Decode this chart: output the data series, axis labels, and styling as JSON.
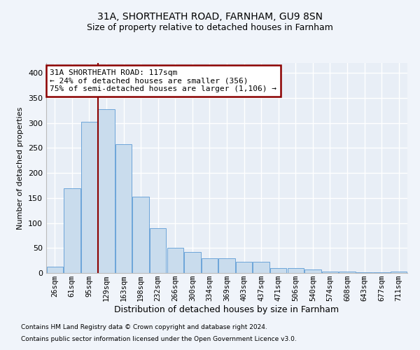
{
  "title1": "31A, SHORTHEATH ROAD, FARNHAM, GU9 8SN",
  "title2": "Size of property relative to detached houses in Farnham",
  "xlabel": "Distribution of detached houses by size in Farnham",
  "ylabel": "Number of detached properties",
  "footer1": "Contains HM Land Registry data © Crown copyright and database right 2024.",
  "footer2": "Contains public sector information licensed under the Open Government Licence v3.0.",
  "annotation_line1": "31A SHORTHEATH ROAD: 117sqm",
  "annotation_line2": "← 24% of detached houses are smaller (356)",
  "annotation_line3": "75% of semi-detached houses are larger (1,106) →",
  "bar_labels": [
    "26sqm",
    "61sqm",
    "95sqm",
    "129sqm",
    "163sqm",
    "198sqm",
    "232sqm",
    "266sqm",
    "300sqm",
    "334sqm",
    "369sqm",
    "403sqm",
    "437sqm",
    "471sqm",
    "506sqm",
    "540sqm",
    "574sqm",
    "608sqm",
    "643sqm",
    "677sqm",
    "711sqm"
  ],
  "bar_values": [
    12,
    170,
    302,
    328,
    258,
    152,
    90,
    50,
    42,
    30,
    30,
    22,
    22,
    10,
    10,
    7,
    3,
    3,
    1,
    1,
    3
  ],
  "bar_color": "#c9dced",
  "bar_edge_color": "#5b9bd5",
  "vline_color": "#8b0000",
  "vline_x": 2.5,
  "ylim": [
    0,
    420
  ],
  "yticks": [
    0,
    50,
    100,
    150,
    200,
    250,
    300,
    350,
    400
  ],
  "annotation_box_color": "#8b0000",
  "bg_color": "#e8eef6",
  "fig_bg_color": "#f0f4fa",
  "grid_color": "#ffffff"
}
